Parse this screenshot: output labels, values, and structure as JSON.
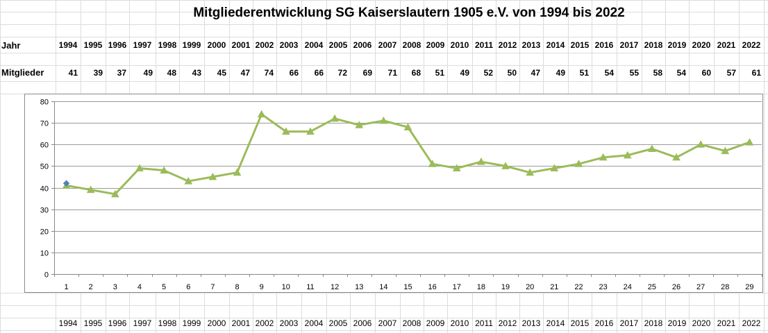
{
  "sheet": {
    "title": "Mitgliederentwicklung SG Kaiserslautern 1905 e.V. von 1994 bis 2022",
    "row_labels": {
      "year": "Jahr",
      "members": "Mitglieder"
    },
    "years": [
      "1994",
      "1995",
      "1996",
      "1997",
      "1998",
      "1999",
      "2000",
      "2001",
      "2002",
      "2003",
      "2004",
      "2005",
      "2006",
      "2007",
      "2008",
      "2009",
      "2010",
      "2011",
      "2012",
      "2013",
      "2014",
      "2015",
      "2016",
      "2017",
      "2018",
      "2019",
      "2020",
      "2021",
      "2022"
    ],
    "members": [
      "41",
      "39",
      "37",
      "49",
      "48",
      "43",
      "45",
      "47",
      "74",
      "66",
      "66",
      "72",
      "69",
      "71",
      "68",
      "51",
      "49",
      "52",
      "50",
      "47",
      "49",
      "51",
      "54",
      "55",
      "58",
      "54",
      "60",
      "57",
      "61"
    ],
    "bottom_years": [
      "1994",
      "1995",
      "1996",
      "1997",
      "1998",
      "1999",
      "2000",
      "2001",
      "2002",
      "2003",
      "2004",
      "2005",
      "2006",
      "2007",
      "2008",
      "2009",
      "2010",
      "2011",
      "2012",
      "2013",
      "2014",
      "2015",
      "2016",
      "2017",
      "2018",
      "2019",
      "2020",
      "2021",
      "2022"
    ]
  },
  "chart_data": {
    "type": "line",
    "x": [
      1,
      2,
      3,
      4,
      5,
      6,
      7,
      8,
      9,
      10,
      11,
      12,
      13,
      14,
      15,
      16,
      17,
      18,
      19,
      20,
      21,
      22,
      23,
      24,
      25,
      26,
      27,
      28,
      29
    ],
    "series": [
      {
        "values": [
          41,
          39,
          37,
          49,
          48,
          43,
          45,
          47,
          74,
          66,
          66,
          72,
          69,
          71,
          68,
          51,
          49,
          52,
          50,
          47,
          49,
          51,
          54,
          55,
          58,
          54,
          60,
          57,
          61
        ],
        "color": "#9bbb59",
        "marker": "triangle"
      },
      {
        "values": [
          42
        ],
        "x": [
          1
        ],
        "color": "#4f81bd",
        "marker": "diamond"
      }
    ],
    "yticks": [
      0,
      10,
      20,
      30,
      40,
      50,
      60,
      70,
      80
    ],
    "ylim": [
      0,
      80
    ],
    "grid": true,
    "legend": false
  }
}
